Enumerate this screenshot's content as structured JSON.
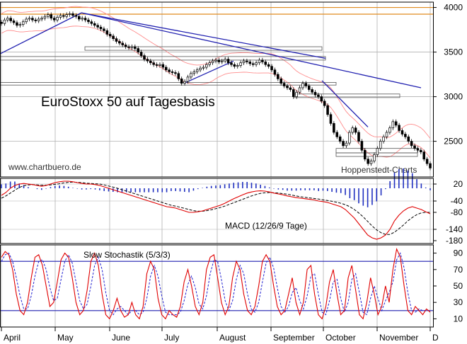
{
  "colors": {
    "background": "#ffffff",
    "grid": "#b0b0b0",
    "frame": "#000000",
    "candle_up": "#ffffff",
    "candle_down": "#000000",
    "bollinger": "#ff8c8c",
    "trendline": "#2020b0",
    "orange_line": "#e08a1e",
    "macd_line": "#e00000",
    "signal_line": "#000000",
    "histogram": "#2030c0",
    "stoch_k": "#e00000",
    "stoch_d": "#2020d0",
    "stoch_level": "#2020b0"
  },
  "labels": {
    "title": "EuroStoxx 50 auf Tagesbasis",
    "website": "www.chartbuero.de",
    "source": "Hoppenstedt-Charts",
    "macd_label": "MACD (12/26/9 Tage)",
    "stoch_label": "Slow Stochastik (5/3/3)"
  },
  "chart_data": [
    {
      "type": "candlestick",
      "title": "EuroStoxx 50 auf Tagesbasis",
      "x_tick_labels": [
        "April",
        "May",
        "June",
        "July",
        "August",
        "September",
        "October",
        "November",
        "D"
      ],
      "y_ticks": [
        4000,
        3500,
        3000,
        2500
      ],
      "ylim": [
        2100,
        4060
      ],
      "resistance_level": 4000,
      "series": [
        {
          "name": "",
          "close": [
            3820,
            3860,
            3880,
            3850,
            3830,
            3800,
            3810,
            3840,
            3870,
            3880,
            3860,
            3850,
            3870,
            3880,
            3900,
            3920,
            3880,
            3860,
            3890,
            3910,
            3900,
            3920,
            3930,
            3910,
            3900,
            3870,
            3880,
            3860,
            3840,
            3820,
            3800,
            3780,
            3760,
            3740,
            3700,
            3680,
            3650,
            3620,
            3600,
            3580,
            3560,
            3550,
            3560,
            3540,
            3500,
            3460,
            3420,
            3400,
            3380,
            3360,
            3350,
            3360,
            3330,
            3300,
            3280,
            3270,
            3260,
            3200,
            3150,
            3170,
            3220,
            3260,
            3280,
            3300,
            3320,
            3330,
            3360,
            3380,
            3400,
            3410,
            3390,
            3400,
            3420,
            3380,
            3360,
            3340,
            3350,
            3380,
            3400,
            3390,
            3370,
            3360,
            3380,
            3410,
            3390,
            3360,
            3340,
            3300,
            3250,
            3200,
            3150,
            3120,
            3100,
            3080,
            3000,
            3050,
            3100,
            3150,
            3120,
            3080,
            3050,
            3020,
            3000,
            2950,
            2900,
            2800,
            2700,
            2600,
            2550,
            2500,
            2450,
            2480,
            2600,
            2650,
            2600,
            2500,
            2400,
            2300,
            2250,
            2280,
            2350,
            2420,
            2500,
            2550,
            2600,
            2650,
            2720,
            2680,
            2620,
            2580,
            2550,
            2500,
            2450,
            2420,
            2400,
            2380,
            2300,
            2250,
            2200
          ]
        }
      ]
    },
    {
      "type": "line",
      "title": "MACD (12/26/9 Tage)",
      "y_ticks": [
        20,
        -40,
        -80,
        -140,
        -180
      ],
      "ylim": [
        -190,
        40
      ],
      "series": [
        {
          "name": "",
          "values": [
            -20,
            -10,
            5,
            15,
            20,
            22,
            20,
            18,
            15,
            12,
            15,
            20,
            25,
            28,
            30,
            30,
            28,
            25,
            22,
            20,
            20,
            18,
            15,
            10,
            5,
            0,
            -5,
            -10,
            -15,
            -20,
            -25,
            -30,
            -35,
            -40,
            -45,
            -50,
            -55,
            -60,
            -62,
            -65,
            -70,
            -75,
            -80,
            -80,
            -78,
            -75,
            -70,
            -65,
            -60,
            -55,
            -48,
            -40,
            -32,
            -25,
            -18,
            -12,
            -8,
            -5,
            -4,
            -5,
            -8,
            -12,
            -15,
            -18,
            -22,
            -25,
            -28,
            -30,
            -32,
            -34,
            -36,
            -40,
            -42,
            -45,
            -50,
            -55,
            -60,
            -70,
            -85,
            -100,
            -120,
            -140,
            -160,
            -170,
            -175,
            -170,
            -160,
            -140,
            -110,
            -90,
            -75,
            -65,
            -60,
            -65,
            -70,
            -78,
            -85
          ]
        },
        {
          "name": "",
          "values": [
            -30,
            -22,
            -12,
            -2,
            8,
            14,
            17,
            18,
            17,
            16,
            16,
            17,
            19,
            21,
            24,
            26,
            27,
            26,
            25,
            23,
            22,
            21,
            20,
            17,
            13,
            9,
            5,
            0,
            -5,
            -10,
            -15,
            -20,
            -25,
            -30,
            -35,
            -40,
            -45,
            -50,
            -55,
            -58,
            -62,
            -66,
            -70,
            -74,
            -76,
            -76,
            -74,
            -71,
            -67,
            -63,
            -58,
            -52,
            -46,
            -40,
            -34,
            -28,
            -22,
            -17,
            -13,
            -11,
            -10,
            -11,
            -12,
            -14,
            -16,
            -19,
            -22,
            -25,
            -27,
            -29,
            -31,
            -33,
            -36,
            -38,
            -41,
            -44,
            -48,
            -53,
            -60,
            -70,
            -82,
            -96,
            -112,
            -128,
            -142,
            -152,
            -158,
            -158,
            -150,
            -138,
            -125,
            -110,
            -98,
            -88,
            -82,
            -80,
            -80
          ]
        }
      ]
    },
    {
      "type": "line",
      "title": "Slow Stochastik (5/3/3)",
      "y_ticks": [
        90,
        70,
        50,
        30,
        10
      ],
      "ylim": [
        0,
        100
      ],
      "levels": [
        80,
        20
      ],
      "series": [
        {
          "name": "",
          "values": [
            85,
            92,
            88,
            70,
            40,
            20,
            15,
            30,
            60,
            85,
            88,
            75,
            50,
            25,
            30,
            55,
            82,
            90,
            85,
            60,
            30,
            15,
            20,
            45,
            80,
            90,
            75,
            40,
            15,
            10,
            20,
            35,
            20,
            12,
            15,
            30,
            15,
            10,
            25,
            65,
            80,
            70,
            35,
            15,
            10,
            20,
            15,
            12,
            25,
            55,
            70,
            50,
            25,
            15,
            30,
            70,
            85,
            88,
            60,
            30,
            15,
            25,
            60,
            80,
            70,
            40,
            20,
            15,
            25,
            50,
            80,
            88,
            80,
            50,
            25,
            15,
            20,
            40,
            60,
            30,
            15,
            30,
            70,
            75,
            40,
            15,
            10,
            25,
            55,
            70,
            40,
            15,
            20,
            60,
            75,
            45,
            15,
            10,
            30,
            60,
            40,
            15,
            25,
            50,
            30,
            70,
            95,
            85,
            50,
            20,
            15,
            25,
            20,
            15,
            22,
            18
          ]
        },
        {
          "name": "",
          "values": [
            80,
            88,
            90,
            80,
            60,
            38,
            22,
            22,
            38,
            62,
            80,
            82,
            70,
            48,
            32,
            35,
            58,
            80,
            88,
            78,
            55,
            32,
            22,
            28,
            50,
            75,
            85,
            70,
            42,
            20,
            15,
            22,
            25,
            20,
            15,
            20,
            20,
            15,
            18,
            35,
            62,
            75,
            62,
            38,
            18,
            15,
            15,
            15,
            18,
            32,
            52,
            62,
            48,
            28,
            22,
            38,
            65,
            82,
            80,
            58,
            32,
            20,
            32,
            58,
            75,
            65,
            40,
            22,
            18,
            30,
            55,
            78,
            85,
            72,
            48,
            25,
            18,
            25,
            42,
            48,
            32,
            22,
            38,
            62,
            65,
            40,
            18,
            15,
            32,
            55,
            58,
            35,
            18,
            30,
            58,
            65,
            42,
            18,
            15,
            35,
            50,
            35,
            20,
            32,
            42,
            55,
            82,
            90,
            72,
            42,
            20,
            18,
            22,
            20,
            20,
            20
          ]
        }
      ]
    }
  ]
}
